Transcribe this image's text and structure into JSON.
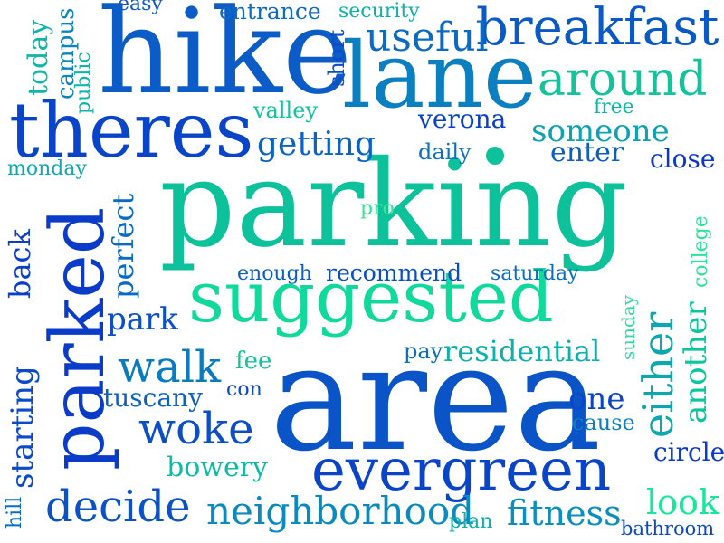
{
  "words": [
    {
      "text": "parking",
      "color": "#0dc29a"
    },
    {
      "text": "area",
      "color": "#0a54c8"
    },
    {
      "text": "hike",
      "color": "#0b5cc6"
    },
    {
      "text": "lane",
      "color": "#0c7fc1"
    },
    {
      "text": "theres",
      "color": "#0a45c9"
    },
    {
      "text": "parked",
      "color": "#0b3bc9"
    },
    {
      "text": "suggested",
      "color": "#11d99c"
    },
    {
      "text": "evergreen",
      "color": "#0a44c9"
    },
    {
      "text": "breakfast",
      "color": "#0b58c7"
    },
    {
      "text": "around",
      "color": "#12c39c"
    },
    {
      "text": "useful",
      "color": "#0b6bc4"
    },
    {
      "text": "walk",
      "color": "#0b7bc1"
    },
    {
      "text": "woke",
      "color": "#0b4ec8"
    },
    {
      "text": "decide",
      "color": "#0b52c7"
    },
    {
      "text": "neighborhood",
      "color": "#0b8abf"
    },
    {
      "text": "either",
      "color": "#0ca8b0"
    },
    {
      "text": "another",
      "color": "#0ec69e"
    },
    {
      "text": "someone",
      "color": "#0ea2b3"
    },
    {
      "text": "getting",
      "color": "#0b63c5"
    },
    {
      "text": "residential",
      "color": "#0fb0ac"
    },
    {
      "text": "fitness",
      "color": "#0b8fbe"
    },
    {
      "text": "starting",
      "color": "#0b4ac8"
    },
    {
      "text": "perfect",
      "color": "#0b6ac4"
    },
    {
      "text": "back",
      "color": "#0b3ec9"
    },
    {
      "text": "park",
      "color": "#0b50c8"
    },
    {
      "text": "bowery",
      "color": "#0fbaa6"
    },
    {
      "text": "tuscany",
      "color": "#0b62c5"
    },
    {
      "text": "look",
      "color": "#15e898"
    },
    {
      "text": "one",
      "color": "#0b46c9"
    },
    {
      "text": "circle",
      "color": "#0b3bc9"
    },
    {
      "text": "close",
      "color": "#0b38ca"
    },
    {
      "text": "enter",
      "color": "#0b5ec6"
    },
    {
      "text": "verona",
      "color": "#0b42c9"
    },
    {
      "text": "recommend",
      "color": "#0b4cc8"
    },
    {
      "text": "entrance",
      "color": "#0b6cc4"
    },
    {
      "text": "security",
      "color": "#0fb1ad"
    },
    {
      "text": "today",
      "color": "#0fb7a7"
    },
    {
      "text": "campus",
      "color": "#0b84bf"
    },
    {
      "text": "public",
      "color": "#0fb5aa"
    },
    {
      "text": "short",
      "color": "#0b4cc8"
    },
    {
      "text": "easy",
      "color": "#0b58c7"
    },
    {
      "text": "valley",
      "color": "#0fc4a0"
    },
    {
      "text": "daily",
      "color": "#0b70c3"
    },
    {
      "text": "free",
      "color": "#0fb9a8"
    },
    {
      "text": "monday",
      "color": "#0fa9b1"
    },
    {
      "text": "pro",
      "color": "#3ae39a"
    },
    {
      "text": "college",
      "color": "#2de39a"
    },
    {
      "text": "enough",
      "color": "#0b5ec6"
    },
    {
      "text": "saturday",
      "color": "#0b6cc4"
    },
    {
      "text": "sunday",
      "color": "#3bd9a2"
    },
    {
      "text": "pay",
      "color": "#0b6cc4"
    },
    {
      "text": "fee",
      "color": "#12c69e"
    },
    {
      "text": "con",
      "color": "#0b4ac8"
    },
    {
      "text": "cause",
      "color": "#0b80c0"
    },
    {
      "text": "hill",
      "color": "#0b6ec4"
    },
    {
      "text": "plan",
      "color": "#0fb1ad"
    },
    {
      "text": "bathroom",
      "color": "#0b48c8"
    }
  ],
  "dot_color": "#0dc29a"
}
